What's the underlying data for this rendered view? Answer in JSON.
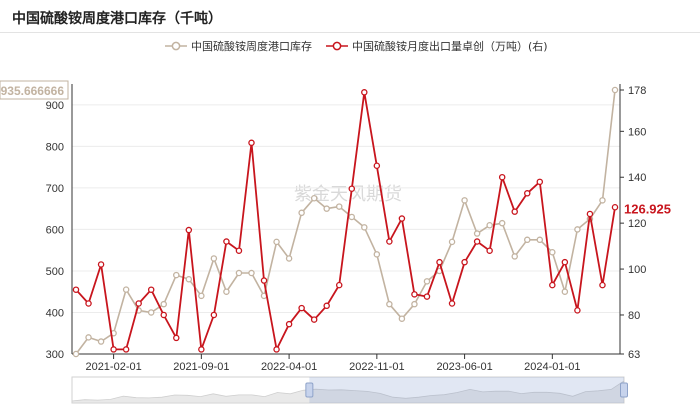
{
  "chart_data": {
    "type": "line",
    "title": "中国硫酸铵周度港口库存（千吨）",
    "watermark": "紫金天风期货",
    "x_tick_labels": [
      "2021-02-01",
      "2021-09-01",
      "2022-04-01",
      "2022-11-01",
      "2023-06-01",
      "2024-01-01"
    ],
    "left_axis": {
      "ylim": [
        300,
        935.666666
      ],
      "ticks": [
        300,
        400,
        500,
        600,
        700,
        800,
        900
      ],
      "max_label": "935.666666"
    },
    "right_axis": {
      "ylim": [
        63,
        178
      ],
      "ticks": [
        63,
        80,
        100,
        120,
        140,
        160,
        178
      ]
    },
    "series": [
      {
        "name": "中国硫酸铵周度港口库存",
        "axis": "left",
        "color": "#c2b3a1",
        "values": [
          300,
          340,
          330,
          350,
          455,
          405,
          400,
          420,
          490,
          480,
          440,
          530,
          450,
          495,
          495,
          440,
          570,
          530,
          640,
          675,
          650,
          655,
          630,
          605,
          540,
          420,
          385,
          420,
          475,
          500,
          570,
          670,
          590,
          610,
          615,
          535,
          575,
          575,
          545,
          450,
          600,
          625,
          670,
          935.666666
        ]
      },
      {
        "name": "中国硫酸铵月度出口量卓创（万吨）(右)",
        "axis": "right",
        "color": "#c8151d",
        "values": [
          91,
          85,
          102,
          65,
          65,
          85,
          91,
          80,
          70,
          117,
          65,
          80,
          112,
          108,
          155,
          95,
          65,
          76,
          83,
          78,
          84,
          93,
          135,
          177,
          145,
          112,
          122,
          89,
          88,
          103,
          85,
          103,
          112,
          108,
          140,
          125,
          133,
          138,
          93,
          103,
          82,
          124,
          93,
          126.925
        ]
      }
    ],
    "annotations": {
      "right_end_value": "126.925"
    },
    "datazoom": {
      "range_start_fraction": 0.43,
      "range_end_fraction": 1.0
    }
  }
}
